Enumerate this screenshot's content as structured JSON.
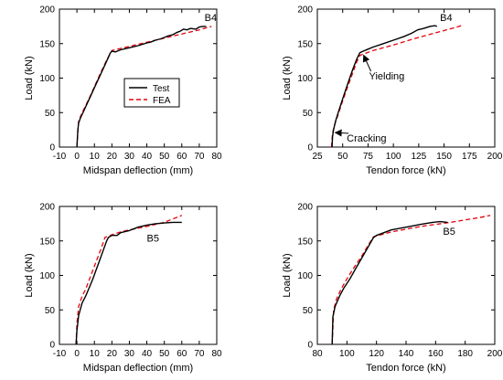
{
  "chart_data": [
    {
      "type": "line",
      "xlabel": "Midspan deflection (mm)",
      "ylabel": "Load (kN)",
      "xlim": [
        -10,
        80
      ],
      "ylim": [
        0,
        200
      ],
      "xticks": [
        -10,
        0,
        10,
        20,
        30,
        40,
        50,
        60,
        70,
        80
      ],
      "yticks": [
        0,
        50,
        100,
        150,
        200
      ],
      "grid": false,
      "legend": "center-left",
      "annotations": [
        {
          "text": "B4",
          "x": 73,
          "y": 183
        }
      ],
      "series": [
        {
          "name": "Test",
          "color": "#000000",
          "style": "solid",
          "x": [
            0,
            0.5,
            1,
            2,
            4,
            6,
            8,
            10,
            12,
            14,
            16,
            18,
            19,
            20,
            22,
            25,
            30,
            35,
            40,
            42,
            45,
            48,
            50,
            52,
            55,
            57,
            59,
            61,
            63,
            65,
            68,
            70,
            72,
            74
          ],
          "y": [
            0,
            25,
            35,
            42,
            53,
            64,
            75,
            86,
            97,
            108,
            119,
            130,
            136,
            139,
            138,
            141,
            144,
            147,
            151,
            152,
            155,
            157,
            159,
            161,
            163,
            166,
            168,
            171,
            170,
            172,
            171,
            174,
            175,
            175
          ]
        },
        {
          "name": "FEA",
          "color": "#e8000b",
          "style": "dashed",
          "x": [
            0,
            1,
            3,
            5,
            8,
            11,
            14,
            17,
            20,
            30,
            40,
            50,
            60,
            70,
            77
          ],
          "y": [
            0,
            38,
            50,
            60,
            76,
            93,
            110,
            126,
            140,
            146,
            152,
            158,
            164,
            170,
            175
          ]
        }
      ]
    },
    {
      "type": "line",
      "xlabel": "Tendon force (kN)",
      "ylabel": "Load (kN)",
      "xlim": [
        25,
        200
      ],
      "ylim": [
        0,
        200
      ],
      "xticks": [
        25,
        50,
        75,
        100,
        125,
        150,
        175,
        200
      ],
      "yticks": [
        0,
        50,
        100,
        150,
        200
      ],
      "grid": false,
      "annotations": [
        {
          "text": "B4",
          "x": 146,
          "y": 183
        },
        {
          "text": "Yielding",
          "x": 76,
          "y": 98,
          "arrow_to": [
            68,
            137
          ]
        },
        {
          "text": "Cracking",
          "x": 54,
          "y": 8,
          "arrow_to": [
            40,
            25
          ]
        }
      ],
      "series": [
        {
          "name": "Test",
          "color": "#000000",
          "style": "solid",
          "x": [
            39.5,
            40,
            41,
            43,
            46,
            50,
            55,
            60,
            64,
            67,
            70,
            75,
            80,
            90,
            100,
            110,
            118,
            124,
            130,
            136,
            141,
            143
          ],
          "y": [
            0,
            15,
            25,
            38,
            52,
            70,
            92,
            113,
            128,
            137,
            139,
            142,
            145,
            150,
            155,
            160,
            165,
            170,
            172,
            175,
            176,
            175
          ]
        },
        {
          "name": "FEA",
          "color": "#e8000b",
          "style": "dashed",
          "x": [
            39,
            40,
            42,
            45,
            50,
            55,
            60,
            64,
            67,
            80,
            100,
            120,
            140,
            160,
            167
          ],
          "y": [
            0,
            20,
            32,
            45,
            67,
            88,
            108,
            124,
            133,
            140,
            148,
            157,
            165,
            173,
            176
          ]
        }
      ]
    },
    {
      "type": "line",
      "xlabel": "Midspan deflection (mm)",
      "ylabel": "Load (kN)",
      "xlim": [
        -10,
        80
      ],
      "ylim": [
        0,
        200
      ],
      "xticks": [
        -10,
        0,
        10,
        20,
        30,
        40,
        50,
        60,
        70,
        80
      ],
      "yticks": [
        0,
        50,
        100,
        150,
        200
      ],
      "grid": false,
      "annotations": [
        {
          "text": "B5",
          "x": 40,
          "y": 149
        }
      ],
      "series": [
        {
          "name": "Test",
          "color": "#000000",
          "style": "solid",
          "x": [
            -0.5,
            0,
            1,
            3,
            5,
            7,
            9,
            11,
            13,
            15,
            17,
            18,
            20,
            23,
            25,
            30,
            35,
            40,
            45,
            50,
            55,
            60
          ],
          "y": [
            0,
            20,
            42,
            60,
            70,
            82,
            94,
            108,
            122,
            136,
            150,
            155,
            158,
            158,
            162,
            165,
            170,
            173,
            175,
            176,
            177,
            177
          ]
        },
        {
          "name": "FEA",
          "color": "#e8000b",
          "style": "dashed",
          "x": [
            -0.5,
            0,
            1,
            3,
            5,
            8,
            11,
            14,
            16,
            20,
            25,
            30,
            40,
            50,
            60
          ],
          "y": [
            0,
            30,
            55,
            70,
            80,
            100,
            120,
            140,
            155,
            159,
            163,
            166,
            171,
            177,
            187
          ]
        }
      ]
    },
    {
      "type": "line",
      "xlabel": "Tendon force (kN)",
      "ylabel": "Load (kN)",
      "xlim": [
        80,
        200
      ],
      "ylim": [
        0,
        200
      ],
      "xticks": [
        80,
        100,
        120,
        140,
        160,
        180,
        200
      ],
      "yticks": [
        0,
        50,
        100,
        150,
        200
      ],
      "grid": false,
      "annotations": [
        {
          "text": "B5",
          "x": 165,
          "y": 159
        }
      ],
      "series": [
        {
          "name": "Test",
          "color": "#000000",
          "style": "solid",
          "x": [
            90,
            90.5,
            92,
            95,
            98,
            102,
            106,
            110,
            114,
            118,
            120,
            125,
            130,
            140,
            150,
            158,
            163,
            168
          ],
          "y": [
            0,
            40,
            55,
            70,
            82,
            95,
            110,
            125,
            140,
            155,
            158,
            162,
            166,
            170,
            174,
            177,
            178,
            177
          ]
        },
        {
          "name": "FEA",
          "color": "#e8000b",
          "style": "dashed",
          "x": [
            90,
            91,
            93,
            96,
            100,
            105,
            110,
            115,
            118,
            130,
            150,
            170,
            190,
            197
          ],
          "y": [
            0,
            50,
            66,
            80,
            95,
            112,
            128,
            146,
            156,
            163,
            171,
            177,
            184,
            187
          ]
        }
      ]
    }
  ]
}
